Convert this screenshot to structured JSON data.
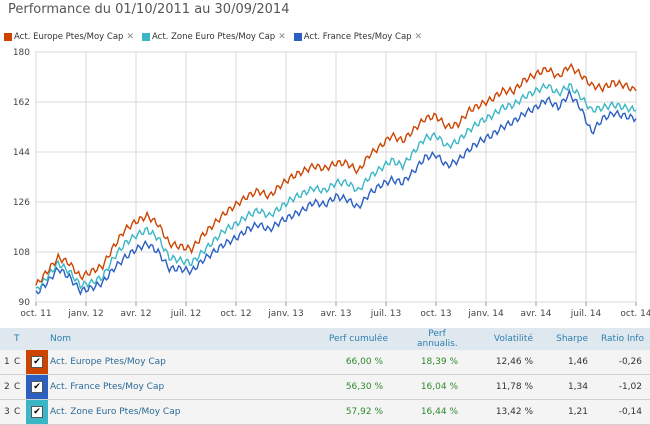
{
  "title": "Performance du 01/10/2011 au 30/09/2014",
  "legend": [
    {
      "label": "Act. Europe Ptes/Moy Cap",
      "color": "#cc4400"
    },
    {
      "label": "Act. Zone Euro Ptes/Moy Cap",
      "color": "#3bb6c6"
    },
    {
      "label": "Act. France Ptes/Moy Cap",
      "color": "#2b5fc2"
    }
  ],
  "legend_close": "✕",
  "chart_data": {
    "type": "line",
    "x_tick_labels": [
      "oct. 11",
      "janv. 12",
      "avr. 12",
      "juil. 12",
      "oct. 12",
      "janv. 13",
      "avr. 13",
      "juil. 13",
      "oct. 13",
      "janv. 14",
      "avr. 14",
      "juil. 14",
      "oct. 14"
    ],
    "y_ticks": [
      90,
      108,
      126,
      144,
      162,
      180
    ],
    "ylim": [
      90,
      180
    ],
    "grid": true,
    "series": [
      {
        "name": "Act. Europe Ptes/Moy Cap",
        "color": "#cc4400",
        "values": [
          96,
          101,
          106,
          104,
          99,
          101,
          103,
          110,
          116,
          119,
          121,
          118,
          111,
          110,
          109,
          114,
          118,
          122,
          125,
          128,
          130,
          128,
          132,
          135,
          137,
          139,
          138,
          140,
          140,
          137,
          143,
          146,
          150,
          148,
          152,
          156,
          157,
          153,
          154,
          159,
          161,
          163,
          166,
          166,
          170,
          172,
          174,
          171,
          175,
          172,
          168,
          167,
          169,
          168,
          166
        ]
      },
      {
        "name": "Act. Zone Euro Ptes/Moy Cap",
        "color": "#3bb6c6",
        "values": [
          94,
          99,
          104,
          101,
          96,
          97,
          99,
          106,
          111,
          114,
          116,
          113,
          106,
          105,
          104,
          108,
          112,
          116,
          118,
          121,
          123,
          121,
          124,
          127,
          129,
          131,
          130,
          133,
          133,
          130,
          135,
          138,
          141,
          139,
          144,
          149,
          150,
          146,
          148,
          152,
          155,
          157,
          160,
          161,
          164,
          166,
          168,
          165,
          168,
          164,
          159,
          160,
          161,
          160,
          159
        ]
      },
      {
        "name": "Act. France Ptes/Moy Cap",
        "color": "#2b5fc2",
        "values": [
          93,
          97,
          102,
          99,
          94,
          95,
          97,
          102,
          106,
          109,
          111,
          108,
          102,
          102,
          101,
          105,
          108,
          111,
          113,
          116,
          118,
          116,
          119,
          121,
          123,
          126,
          125,
          128,
          127,
          124,
          129,
          132,
          134,
          133,
          137,
          142,
          143,
          139,
          141,
          145,
          148,
          150,
          153,
          155,
          158,
          160,
          163,
          160,
          165,
          160,
          151,
          156,
          158,
          157,
          156
        ]
      }
    ]
  },
  "table": {
    "headers": {
      "t": "T",
      "nom": "Nom",
      "perf": "Perf cumulée",
      "perf_ann": "Perf annualis.",
      "vol": "Volatilité",
      "sharpe": "Sharpe",
      "ratio": "Ratio Info"
    },
    "rows": [
      {
        "n": "1",
        "t": "C",
        "color": "#cc4400",
        "check": "✔",
        "nom": "Act. Europe Ptes/Moy Cap",
        "perf": "66,00 %",
        "perf_ann": "18,39 %",
        "vol": "12,46 %",
        "sharpe": "1,46",
        "ratio": "-0,26"
      },
      {
        "n": "2",
        "t": "C",
        "color": "#2b5fc2",
        "check": "✔",
        "nom": "Act. France Ptes/Moy Cap",
        "perf": "56,30 %",
        "perf_ann": "16,04 %",
        "vol": "11,78 %",
        "sharpe": "1,34",
        "ratio": "-1,02"
      },
      {
        "n": "3",
        "t": "C",
        "color": "#3bb6c6",
        "check": "✔",
        "nom": "Act. Zone Euro Ptes/Moy Cap",
        "perf": "57,92 %",
        "perf_ann": "16,44 %",
        "vol": "13,42 %",
        "sharpe": "1,21",
        "ratio": "-0,14"
      }
    ]
  }
}
